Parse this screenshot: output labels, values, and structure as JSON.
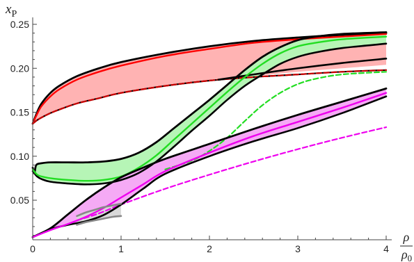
{
  "chart_data": {
    "type": "line",
    "xlabel": "ρ/ρ0",
    "ylabel": "xP",
    "ylabel_parts": {
      "base": "x",
      "sub": "P"
    },
    "xlabel_parts": {
      "num": "ρ",
      "den_base": "ρ",
      "den_sub": "0"
    },
    "xlim": [
      0,
      4
    ],
    "ylim": [
      0.005,
      0.25
    ],
    "xticks": [
      0,
      1,
      2,
      3,
      4
    ],
    "yticks": [
      0.05,
      0.1,
      0.15,
      0.2,
      0.25
    ],
    "xtick_labels": [
      "0",
      "1",
      "2",
      "3",
      "4"
    ],
    "ytick_labels": [
      "0.05",
      "0.10",
      "0.15",
      "0.20",
      "0.25"
    ],
    "grid": false,
    "legend": "none",
    "colors": {
      "red": "#ff0000",
      "red_fill": "#ffb3b3",
      "darkred": "#cc0000",
      "green": "#22dd22",
      "green_fill": "#b6f5b6",
      "magenta": "#ee00ee",
      "magenta_fill": "#f5aaf5",
      "gray": "#888888",
      "gray_fill": "#d9d9d9",
      "black": "#000000"
    },
    "bands": [
      {
        "color": "red",
        "x": [
          0,
          0.05,
          0.1,
          0.2,
          0.3,
          0.5,
          0.75,
          1,
          1.5,
          2,
          2.5,
          3,
          3.5,
          4
        ],
        "upper": [
          0.137,
          0.15,
          0.16,
          0.172,
          0.18,
          0.191,
          0.2,
          0.207,
          0.217,
          0.225,
          0.231,
          0.235,
          0.238,
          0.24
        ],
        "lower": [
          0.137,
          0.14,
          0.143,
          0.148,
          0.152,
          0.159,
          0.165,
          0.171,
          0.179,
          0.186,
          0.191,
          0.196,
          0.2,
          0.204
        ],
        "center": [
          0.137,
          0.148,
          0.157,
          0.168,
          0.176,
          0.187,
          0.196,
          0.203,
          0.214,
          0.222,
          0.229,
          0.233,
          0.236,
          0.239
        ],
        "dashed": [
          0.137,
          0.141,
          0.144,
          0.149,
          0.153,
          0.16,
          0.166,
          0.172,
          0.18,
          0.186,
          0.19,
          0.193,
          0.196,
          0.198
        ],
        "extra_bound": {
          "x": [
            2.1,
            2.5,
            3,
            3.5,
            4
          ],
          "y": [
            0.187,
            0.193,
            0.2,
            0.206,
            0.211
          ]
        }
      },
      {
        "color": "green",
        "x_upper": [
          0,
          0.02,
          0.04,
          0.1,
          0.2,
          0.4,
          0.6,
          0.8,
          1,
          1.2,
          1.4,
          1.6,
          1.8,
          2,
          2.2,
          2.4,
          2.6,
          2.8,
          3,
          3.2,
          3.5,
          4
        ],
        "upper": [
          0.087,
          0.081,
          0.09,
          0.092,
          0.093,
          0.093,
          0.093,
          0.094,
          0.097,
          0.104,
          0.116,
          0.132,
          0.148,
          0.164,
          0.181,
          0.198,
          0.213,
          0.224,
          0.232,
          0.236,
          0.239,
          0.241
        ],
        "x_lower": [
          0,
          0.05,
          0.1,
          0.2,
          0.4,
          0.6,
          0.8,
          1,
          1.2,
          1.4,
          1.6,
          1.8,
          2,
          2.2,
          2.4,
          2.6,
          2.8,
          3,
          3.2,
          3.5,
          4
        ],
        "lower": [
          0.083,
          0.077,
          0.074,
          0.071,
          0.069,
          0.068,
          0.069,
          0.073,
          0.081,
          0.094,
          0.111,
          0.129,
          0.146,
          0.164,
          0.18,
          0.193,
          0.205,
          0.213,
          0.218,
          0.223,
          0.228
        ],
        "x_center": [
          0,
          0.05,
          0.1,
          0.2,
          0.4,
          0.6,
          0.8,
          1,
          1.2,
          1.4,
          1.6,
          1.8,
          2,
          2.2,
          2.4,
          2.6,
          2.8,
          3,
          3.2,
          3.5,
          4
        ],
        "center": [
          0.085,
          0.079,
          0.077,
          0.075,
          0.073,
          0.072,
          0.073,
          0.077,
          0.087,
          0.101,
          0.119,
          0.137,
          0.155,
          0.173,
          0.19,
          0.205,
          0.217,
          0.225,
          0.229,
          0.233,
          0.236
        ],
        "x_dashed": [
          1.5,
          1.8,
          2,
          2.2,
          2.4,
          2.6,
          2.8,
          3,
          3.2,
          3.5,
          4
        ],
        "dashed": [
          0.085,
          0.095,
          0.106,
          0.121,
          0.14,
          0.158,
          0.172,
          0.182,
          0.188,
          0.193,
          0.196
        ]
      },
      {
        "color": "magenta",
        "x_upper": [
          0,
          0.2,
          0.4,
          0.6,
          0.8,
          1,
          1.25,
          1.5,
          2,
          2.5,
          3,
          3.5,
          4
        ],
        "upper": [
          0.008,
          0.018,
          0.034,
          0.05,
          0.064,
          0.076,
          0.087,
          0.097,
          0.114,
          0.131,
          0.147,
          0.162,
          0.177
        ],
        "x_lower": [
          0,
          0.2,
          0.4,
          0.6,
          0.8,
          1,
          1.25,
          1.5,
          2,
          2.5,
          3,
          3.5,
          4
        ],
        "lower": [
          0.008,
          0.017,
          0.022,
          0.026,
          0.033,
          0.045,
          0.063,
          0.08,
          0.1,
          0.117,
          0.132,
          0.149,
          0.168
        ],
        "x_center": [
          0,
          0.2,
          0.4,
          0.6,
          0.8,
          1,
          1.25,
          1.5,
          2,
          2.5,
          3,
          3.5,
          4
        ],
        "center": [
          0.008,
          0.016,
          0.023,
          0.031,
          0.041,
          0.053,
          0.068,
          0.083,
          0.104,
          0.123,
          0.139,
          0.155,
          0.172
        ],
        "x_dashed": [
          0.5,
          0.75,
          1,
          1.5,
          2,
          2.5,
          3,
          3.5,
          4
        ],
        "dashed": [
          0.027,
          0.035,
          0.045,
          0.063,
          0.079,
          0.094,
          0.108,
          0.121,
          0.133
        ]
      },
      {
        "color": "gray",
        "x": [
          0.5,
          0.6,
          0.7,
          0.8,
          0.9,
          1
        ],
        "upper": [
          0.032,
          0.036,
          0.039,
          0.042,
          0.044,
          0.046
        ],
        "lower": [
          0.022,
          0.025,
          0.027,
          0.029,
          0.031,
          0.032
        ]
      }
    ]
  }
}
